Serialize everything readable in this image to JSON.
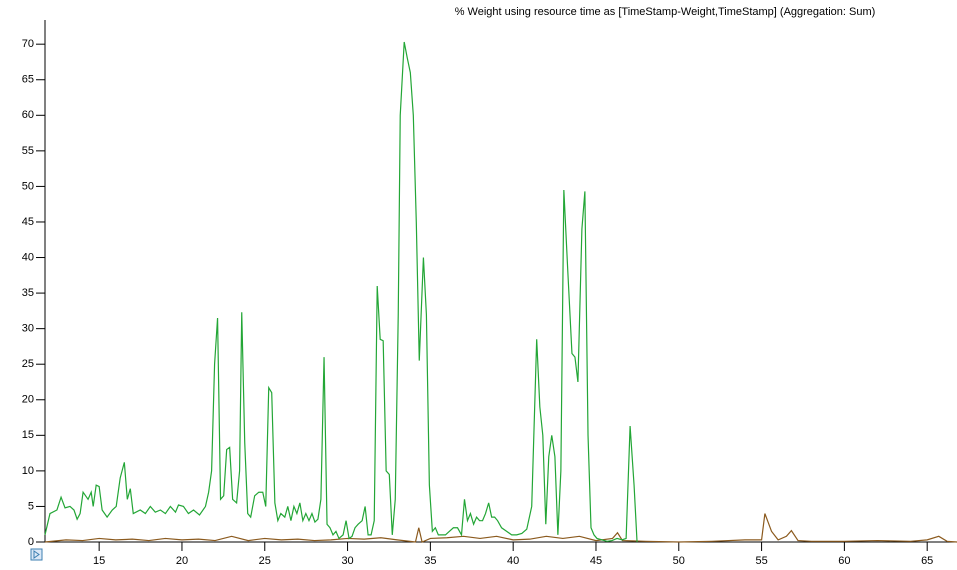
{
  "chart_data": {
    "type": "line",
    "title": "% Weight using resource time as [TimeStamp-Weight,TimeStamp] (Aggregation: Sum)",
    "xlim": [
      11.73,
      66.8
    ],
    "ylim": [
      0,
      73.4
    ],
    "xticks": [
      15,
      20,
      25,
      30,
      35,
      40,
      45,
      50,
      55,
      60,
      65
    ],
    "yticks": [
      0,
      5,
      10,
      15,
      20,
      25,
      30,
      35,
      40,
      45,
      50,
      55,
      60,
      65,
      70
    ],
    "series": [
      {
        "color": "#23a636",
        "x": [
          11.73,
          12.03,
          12.45,
          12.7,
          12.94,
          13.24,
          13.48,
          13.67,
          13.85,
          14.03,
          14.33,
          14.52,
          14.64,
          14.82,
          15,
          15.18,
          15.48,
          15.79,
          16.03,
          16.27,
          16.52,
          16.7,
          16.88,
          17.06,
          17.48,
          17.79,
          18.09,
          18.39,
          18.7,
          19.0,
          19.3,
          19.61,
          19.79,
          20.09,
          20.39,
          20.7,
          21.06,
          21.42,
          21.61,
          21.79,
          21.97,
          22.15,
          22.33,
          22.52,
          22.7,
          22.88,
          23.06,
          23.3,
          23.48,
          23.61,
          23.79,
          23.97,
          24.15,
          24.39,
          24.64,
          24.88,
          25.06,
          25.24,
          25.42,
          25.61,
          25.79,
          25.97,
          26.21,
          26.39,
          26.58,
          26.76,
          26.94,
          27.12,
          27.3,
          27.48,
          27.67,
          27.85,
          28.03,
          28.21,
          28.39,
          28.58,
          28.76,
          28.94,
          29.12,
          29.3,
          29.48,
          29.73,
          29.91,
          30.09,
          30.27,
          30.45,
          30.64,
          30.88,
          31.06,
          31.24,
          31.42,
          31.61,
          31.79,
          31.97,
          32.15,
          32.33,
          32.52,
          32.7,
          32.88,
          33.06,
          33.18,
          33.42,
          33.61,
          33.79,
          33.97,
          34.15,
          34.33,
          34.58,
          34.76,
          34.94,
          35.12,
          35.3,
          35.48,
          35.67,
          35.91,
          36.15,
          36.39,
          36.64,
          36.88,
          37.06,
          37.24,
          37.42,
          37.61,
          37.79,
          37.97,
          38.15,
          38.33,
          38.52,
          38.7,
          38.88,
          39.06,
          39.3,
          39.61,
          39.91,
          40.21,
          40.52,
          40.82,
          41.12,
          41.42,
          41.61,
          41.79,
          41.97,
          42.15,
          42.33,
          42.52,
          42.7,
          42.88,
          43.06,
          43.3,
          43.55,
          43.73,
          43.91,
          44.15,
          44.33,
          44.52,
          44.7,
          44.88,
          45.06,
          45.36,
          45.67,
          45.97,
          46.27,
          46.58,
          46.82,
          47.06,
          47.3,
          47.48
        ],
        "values": [
          1,
          4,
          4.5,
          6.3,
          4.8,
          5,
          4.5,
          3.2,
          4,
          7,
          6,
          7,
          5,
          8,
          7.8,
          4.5,
          3.5,
          4.5,
          5,
          9,
          11.2,
          6,
          7.5,
          4,
          4.5,
          4,
          5,
          4.2,
          4.5,
          4,
          5,
          4.2,
          5.2,
          5,
          4,
          4.5,
          3.8,
          5,
          7,
          10,
          25,
          31.5,
          6,
          6.5,
          13,
          13.3,
          6,
          5.5,
          10,
          32.3,
          14,
          4,
          3.5,
          6.5,
          7,
          7,
          5,
          21.7,
          21,
          5.5,
          3,
          4,
          3.5,
          5,
          3,
          5,
          4,
          5.5,
          3,
          4,
          3,
          4,
          2.8,
          3.2,
          6,
          26,
          2.5,
          2,
          1,
          1.5,
          0.5,
          1,
          3,
          0.5,
          0.8,
          2,
          2.5,
          3,
          5,
          1,
          1,
          3,
          36,
          28.5,
          28.3,
          10,
          9.5,
          1,
          6,
          32,
          60,
          70.3,
          68,
          66,
          60,
          45,
          25.5,
          40,
          32,
          8,
          1.5,
          2,
          1,
          1,
          1,
          1.5,
          2,
          2,
          1,
          6,
          3,
          4,
          2.5,
          3.5,
          3,
          3,
          4,
          5.5,
          3.5,
          3.5,
          3,
          2,
          1.5,
          1,
          1,
          1.2,
          1.8,
          5,
          28.5,
          19,
          15,
          2.5,
          12,
          15,
          12,
          1,
          10,
          49.5,
          38,
          26.5,
          26,
          22.5,
          44,
          49.3,
          15,
          2,
          1,
          0.5,
          0.3,
          0.1,
          0.2,
          0.5,
          0.3,
          0.5,
          16.3,
          8,
          0
        ]
      },
      {
        "color": "#8b5a1e",
        "x": [
          11.73,
          13,
          14,
          15,
          16,
          17,
          18,
          19,
          20,
          21,
          22,
          23,
          24,
          25,
          26,
          27,
          28,
          29,
          30,
          31,
          32,
          33,
          34.1,
          34.3,
          34.5,
          35,
          36,
          37,
          38,
          39,
          40,
          41,
          42,
          43,
          44,
          45,
          46,
          46.3,
          46.6,
          48,
          50,
          52,
          54,
          55,
          55.2,
          55.6,
          56,
          56.5,
          56.8,
          57.2,
          58,
          60,
          62,
          64,
          65,
          65.7,
          66.2,
          66.8
        ],
        "values": [
          0,
          0.3,
          0.2,
          0.5,
          0.3,
          0.4,
          0.2,
          0.5,
          0.3,
          0.4,
          0.2,
          0.8,
          0.2,
          0.5,
          0.3,
          0.4,
          0.2,
          0.3,
          0.5,
          0.4,
          0.6,
          0.3,
          0,
          2,
          0,
          0.5,
          0.6,
          0.8,
          0.5,
          0.8,
          0.3,
          0.4,
          0.8,
          0.5,
          0.8,
          0.2,
          0.5,
          1.3,
          0.2,
          0.1,
          0,
          0.1,
          0.3,
          0.3,
          4,
          1.5,
          0.3,
          0.8,
          1.6,
          0.2,
          0.1,
          0.1,
          0.2,
          0.1,
          0.3,
          0.8,
          0.1,
          0
        ]
      }
    ]
  }
}
